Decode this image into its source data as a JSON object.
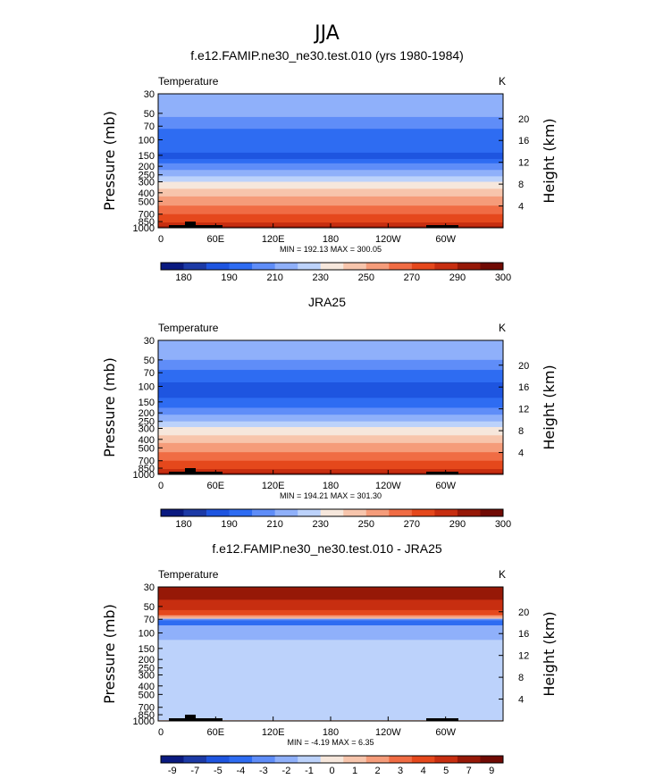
{
  "figure": {
    "title": "JJA"
  },
  "chart_data": [
    {
      "type": "heatmap",
      "title": "f.e12.FAMIP.ne30_ne30.test.010 (yrs 1980-1984)",
      "left_label": "Temperature",
      "right_label": "K",
      "ylabel": "Pressure (mb)",
      "y2label": "Height (km)",
      "x_ticks": [
        "0",
        "60E",
        "120E",
        "180",
        "120W",
        "60W"
      ],
      "y_ticks": [
        "30",
        "50",
        "70",
        "100",
        "150",
        "200",
        "250",
        "300",
        "400",
        "500",
        "700",
        "850",
        "1000"
      ],
      "y2_ticks": [
        "20",
        "16",
        "12",
        "8",
        "4"
      ],
      "stats": "MIN = 192.13   MAX = 300.05",
      "colorbar_labels": [
        "180",
        "190",
        "210",
        "230",
        "250",
        "270",
        "290",
        "300"
      ],
      "bands": [
        {
          "p": 30,
          "level": 5
        },
        {
          "p": 55,
          "level": 4
        },
        {
          "p": 75,
          "level": 3
        },
        {
          "p": 140,
          "level": 2
        },
        {
          "p": 165,
          "level": 3
        },
        {
          "p": 185,
          "level": 4
        },
        {
          "p": 220,
          "level": 5
        },
        {
          "p": 260,
          "level": 6
        },
        {
          "p": 300,
          "level": 7
        },
        {
          "p": 360,
          "level": 8
        },
        {
          "p": 440,
          "level": 9
        },
        {
          "p": 560,
          "level": 10
        },
        {
          "p": 700,
          "level": 11
        },
        {
          "p": 870,
          "level": 12
        },
        {
          "p": 960,
          "level": 13
        }
      ]
    },
    {
      "type": "heatmap",
      "title": "JRA25",
      "left_label": "Temperature",
      "right_label": "K",
      "ylabel": "Pressure (mb)",
      "y2label": "Height (km)",
      "x_ticks": [
        "0",
        "60E",
        "120E",
        "180",
        "120W",
        "60W"
      ],
      "y_ticks": [
        "30",
        "50",
        "70",
        "100",
        "150",
        "200",
        "250",
        "300",
        "400",
        "500",
        "700",
        "850",
        "1000"
      ],
      "y2_ticks": [
        "20",
        "16",
        "12",
        "8",
        "4"
      ],
      "stats": "MIN = 194.21   MAX = 301.30",
      "colorbar_labels": [
        "180",
        "190",
        "210",
        "230",
        "250",
        "270",
        "290",
        "300"
      ],
      "bands": [
        {
          "p": 30,
          "level": 5
        },
        {
          "p": 50,
          "level": 4
        },
        {
          "p": 65,
          "level": 3
        },
        {
          "p": 90,
          "level": 2
        },
        {
          "p": 135,
          "level": 3
        },
        {
          "p": 175,
          "level": 4
        },
        {
          "p": 210,
          "level": 5
        },
        {
          "p": 250,
          "level": 6
        },
        {
          "p": 290,
          "level": 7
        },
        {
          "p": 360,
          "level": 8
        },
        {
          "p": 440,
          "level": 9
        },
        {
          "p": 560,
          "level": 10
        },
        {
          "p": 700,
          "level": 11
        },
        {
          "p": 870,
          "level": 12
        },
        {
          "p": 960,
          "level": 13
        }
      ]
    },
    {
      "type": "heatmap",
      "title": "f.e12.FAMIP.ne30_ne30.test.010 - JRA25",
      "left_label": "Temperature",
      "right_label": "K",
      "ylabel": "Pressure (mb)",
      "y2label": "Height (km)",
      "x_ticks": [
        "0",
        "60E",
        "120E",
        "180",
        "120W",
        "60W"
      ],
      "y_ticks": [
        "30",
        "50",
        "70",
        "100",
        "150",
        "200",
        "250",
        "300",
        "400",
        "500",
        "700",
        "850",
        "1000"
      ],
      "y2_ticks": [
        "20",
        "16",
        "12",
        "8",
        "4"
      ],
      "stats": "MIN =  -4.19   MAX =   6.35",
      "colorbar_labels": [
        "-9",
        "-7",
        "-5",
        "-4",
        "-3",
        "-2",
        "-1",
        "0",
        "1",
        "2",
        "3",
        "4",
        "5",
        "7",
        "9"
      ],
      "bands": [
        {
          "p": 30,
          "level": 13
        },
        {
          "p": 42,
          "level": 12
        },
        {
          "p": 55,
          "level": 11
        },
        {
          "p": 63,
          "level": 9
        },
        {
          "p": 67,
          "level": 8
        },
        {
          "p": 69,
          "level": 4
        },
        {
          "p": 72,
          "level": 3
        },
        {
          "p": 82,
          "level": 5
        },
        {
          "p": 120,
          "level": 6
        },
        {
          "p": 980,
          "level": 8
        }
      ]
    }
  ],
  "palette": [
    "#0a1a80",
    "#1c3aa6",
    "#1e55e0",
    "#2e6cf2",
    "#5f8df8",
    "#8fb0fa",
    "#bcd2fb",
    "#f6e7dc",
    "#f7c5ac",
    "#f59c7a",
    "#f06c44",
    "#e5481c",
    "#c72e10",
    "#961807",
    "#700a04"
  ]
}
